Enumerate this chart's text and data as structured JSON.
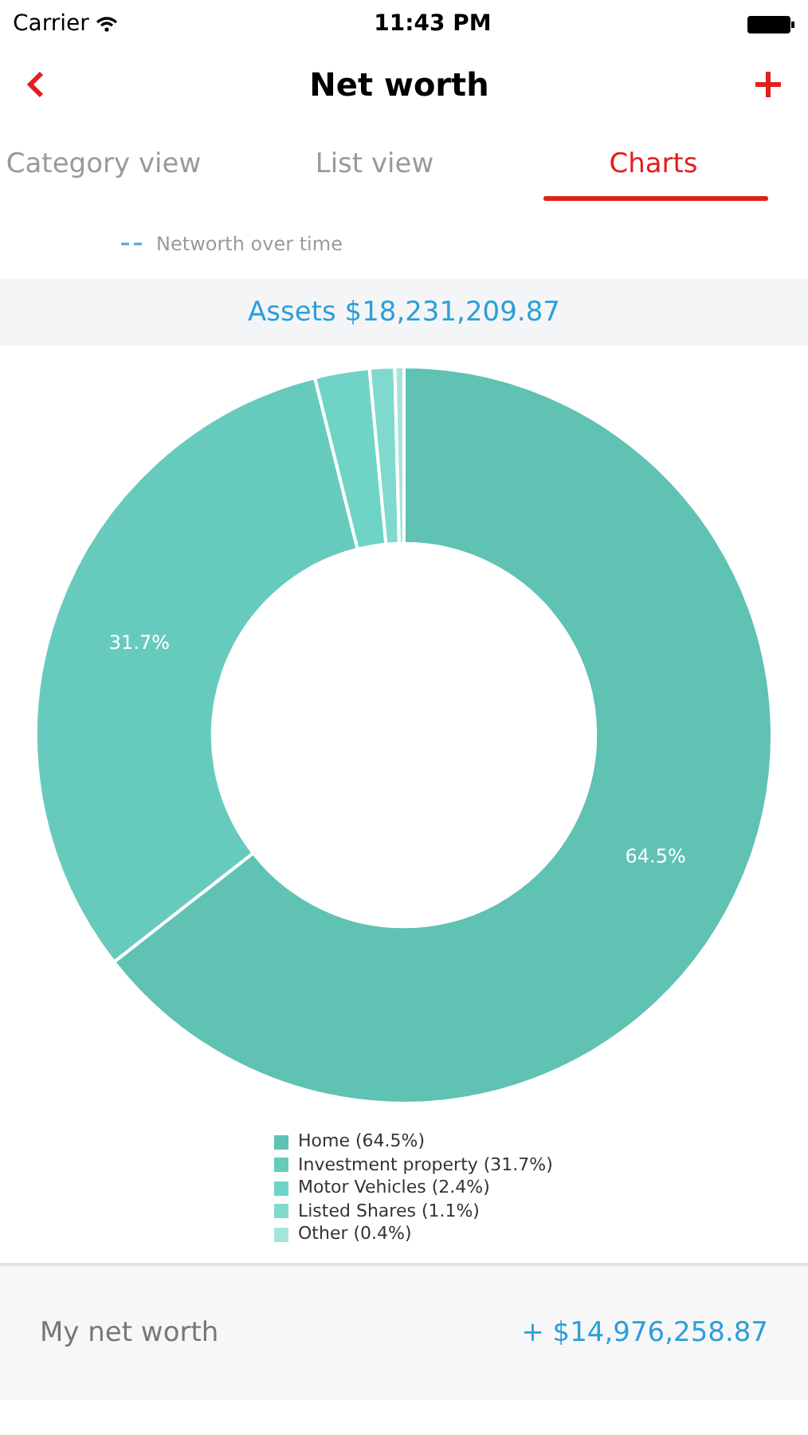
{
  "chart_data": {
    "type": "donut",
    "title": "Assets $18,231,209.87",
    "categories": [
      "Home (64.5%)",
      "Investment property (31.7%)",
      "Motor Vehicles (2.4%)",
      "Listed Shares (1.1%)",
      "Other (0.4%)"
    ],
    "values": [
      64.5,
      31.7,
      2.4,
      1.1,
      0.4
    ],
    "colors": [
      "#5fc2b3",
      "#66cbbd",
      "#6fd4c6",
      "#80d9cd",
      "#a5e4db"
    ],
    "value_labels": [
      "64.5%",
      "31.7%",
      null,
      null,
      null
    ],
    "legend": "bottom",
    "annotations": [
      "Carrier",
      "11:43 PM",
      "Net worth",
      "Category view",
      "List view",
      "Charts",
      "Networth over time",
      "My net worth",
      "+ $14,976,258.87"
    ]
  }
}
